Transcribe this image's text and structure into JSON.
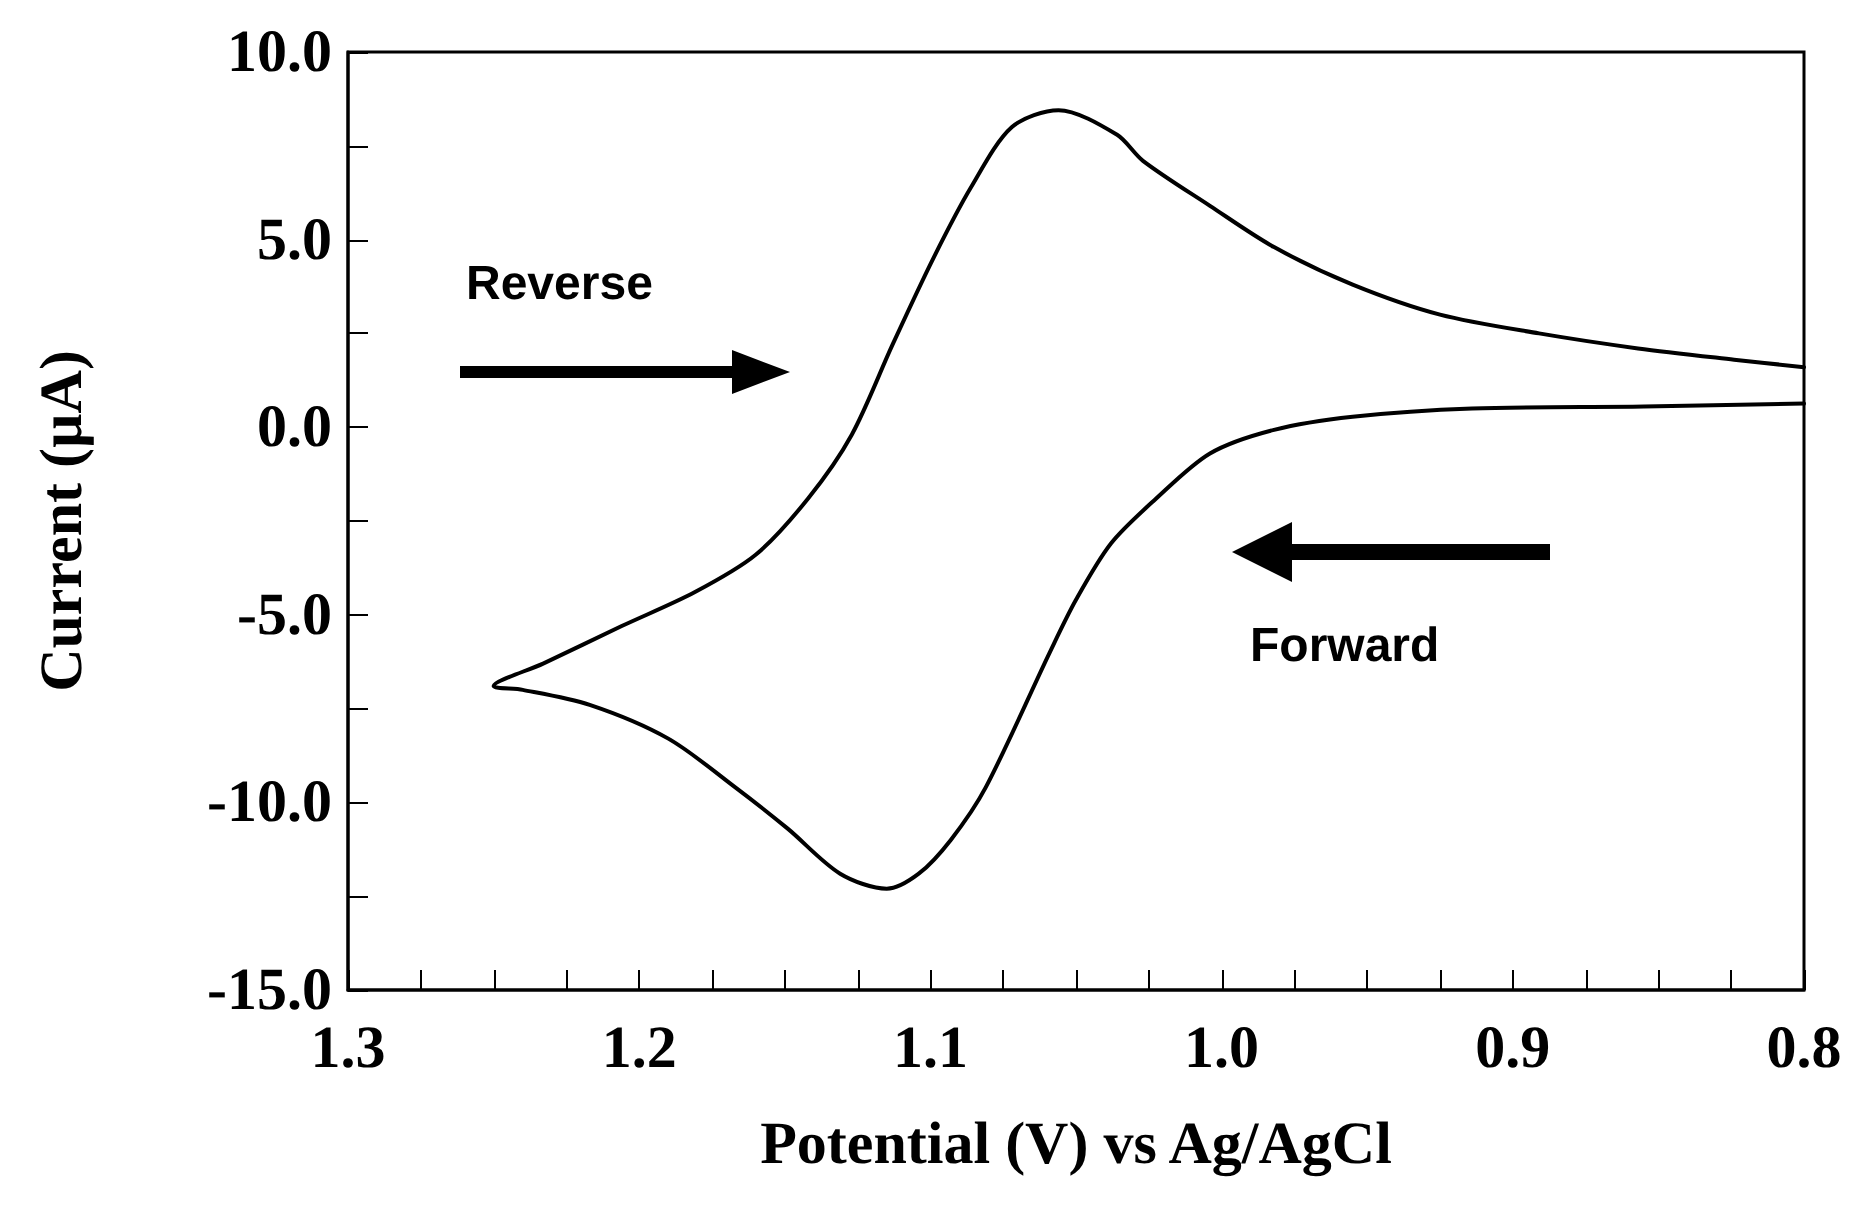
{
  "chart_data": {
    "type": "line",
    "xlabel": "Potential (V) vs Ag/AgCl",
    "ylabel": "Current (µA)",
    "xlim": [
      1.3,
      0.8
    ],
    "xticks": [
      1.3,
      {
        "value": 1.275,
        "label": null
      },
      {
        "value": 1.25,
        "label": null
      },
      {
        "value": 1.225,
        "label": null
      },
      1.2,
      {
        "value": 1.175,
        "label": null
      },
      {
        "value": 1.15,
        "label": null
      },
      {
        "value": 1.125,
        "label": null
      },
      1.1,
      {
        "value": 1.075,
        "label": null
      },
      {
        "value": 1.05,
        "label": null
      },
      {
        "value": 1.025,
        "label": null
      },
      {
        "value": 1.0,
        "label": "1.0"
      },
      {
        "value": 0.975,
        "label": null
      },
      {
        "value": 0.95,
        "label": null
      },
      {
        "value": 0.925,
        "label": null
      },
      0.9,
      {
        "value": 0.875,
        "label": null
      },
      {
        "value": 0.85,
        "label": null
      },
      {
        "value": 0.825,
        "label": null
      },
      0.8
    ],
    "ylim": [
      -15,
      10
    ],
    "yticks": [
      {
        "value": -15,
        "label": "-15.0"
      },
      {
        "value": -12.5,
        "label": null
      },
      {
        "value": -10,
        "label": "-10.0"
      },
      {
        "value": -7.5,
        "label": null
      },
      {
        "value": -5,
        "label": "-5.0"
      },
      {
        "value": -2.5,
        "label": null
      },
      {
        "value": 0,
        "label": "0.0"
      },
      {
        "value": 2.5,
        "label": null
      },
      {
        "value": 5,
        "label": "5.0"
      },
      {
        "value": 7.5,
        "label": null
      },
      {
        "value": 10,
        "label": "10.0"
      }
    ],
    "grid": false,
    "marker": "none",
    "line_style": "solid",
    "annotations": [
      "Reverse",
      "Forward"
    ],
    "series": [
      {
        "color": "#000000",
        "x": [
          0.8,
          0.855,
          0.914,
          0.955,
          0.982,
          1.004,
          1.023,
          1.038,
          1.05,
          1.059,
          1.081,
          1.093,
          1.104,
          1.115,
          1.131,
          1.149,
          1.167,
          1.19,
          1.217,
          1.24,
          1.25,
          1.233,
          1.206,
          1.181,
          1.16,
          1.142,
          1.127,
          1.113,
          1.099,
          1.086,
          1.072,
          1.056,
          1.036,
          1.027,
          1.004,
          0.982,
          0.955,
          0.925,
          0.891,
          0.857,
          0.824,
          0.8
        ],
        "values": [
          0.63,
          0.55,
          0.5,
          0.28,
          -0.07,
          -0.7,
          -1.94,
          -3.1,
          -4.6,
          -6.0,
          -9.6,
          -11.0,
          -11.9,
          -12.3,
          -11.9,
          -10.7,
          -9.6,
          -8.3,
          -7.4,
          -7.0,
          -6.9,
          -6.3,
          -5.3,
          -4.4,
          -3.4,
          -1.9,
          -0.2,
          2.2,
          4.5,
          6.4,
          8.0,
          8.45,
          7.8,
          7.1,
          5.9,
          4.8,
          3.8,
          3.0,
          2.5,
          2.1,
          1.8,
          1.6
        ]
      }
    ]
  }
}
